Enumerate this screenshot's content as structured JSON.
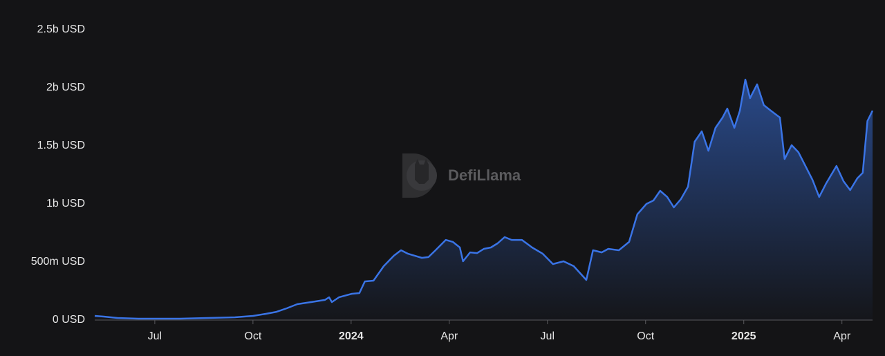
{
  "chart_data": {
    "type": "area",
    "color": "#3a74e6",
    "watermark": "DefiLlama",
    "xlim": [
      2023.347,
      2025.328
    ],
    "xticks": [
      {
        "value": 2023.5,
        "label": "Jul"
      },
      {
        "value": 2023.75,
        "label": "Oct"
      },
      {
        "value": 2024.0,
        "label": "2024"
      },
      {
        "value": 2024.25,
        "label": "Apr"
      },
      {
        "value": 2024.5,
        "label": "Jul"
      },
      {
        "value": 2024.75,
        "label": "Oct"
      },
      {
        "value": 2025.0,
        "label": "2025"
      },
      {
        "value": 2025.25,
        "label": "Apr"
      }
    ],
    "ylim": [
      0,
      2500000000
    ],
    "yticks": [
      {
        "value": 0,
        "label": "0 USD"
      },
      {
        "value": 500000000,
        "label": "500m USD"
      },
      {
        "value": 1000000000,
        "label": "1b USD"
      },
      {
        "value": 1500000000,
        "label": "1.5b USD"
      },
      {
        "value": 2000000000,
        "label": "2b USD"
      },
      {
        "value": 2500000000,
        "label": "2.5b USD"
      }
    ],
    "x": [
      2023.347,
      2023.37,
      2023.405,
      2023.458,
      2023.5,
      2023.564,
      2023.634,
      2023.704,
      2023.75,
      2023.784,
      2023.81,
      2023.836,
      2023.863,
      2023.898,
      2023.933,
      2023.944,
      2023.951,
      2023.969,
      2024.002,
      2024.021,
      2024.035,
      2024.057,
      2024.083,
      2024.109,
      2024.127,
      2024.145,
      2024.162,
      2024.18,
      2024.197,
      2024.215,
      2024.241,
      2024.259,
      2024.277,
      2024.285,
      2024.303,
      2024.321,
      2024.338,
      2024.356,
      2024.373,
      2024.391,
      2024.409,
      2024.435,
      2024.461,
      2024.488,
      2024.514,
      2024.541,
      2024.567,
      2024.599,
      2024.616,
      2024.638,
      2024.655,
      2024.682,
      2024.708,
      2024.729,
      2024.752,
      2024.77,
      2024.787,
      2024.805,
      2024.822,
      2024.84,
      2024.858,
      2024.875,
      2024.893,
      2024.91,
      2024.928,
      2024.946,
      2024.958,
      2024.976,
      2024.99,
      2025.004,
      2025.016,
      2025.034,
      2025.051,
      2025.069,
      2025.092,
      2025.104,
      2025.122,
      2025.139,
      2025.157,
      2025.175,
      2025.192,
      2025.21,
      2025.236,
      2025.254,
      2025.271,
      2025.289,
      2025.303,
      2025.315,
      2025.328
    ],
    "values": [
      36000000,
      30000000,
      18000000,
      12000000,
      12000000,
      12000000,
      18000000,
      24000000,
      36000000,
      54000000,
      71000000,
      101000000,
      137000000,
      155000000,
      173000000,
      196000000,
      155000000,
      196000000,
      226000000,
      232000000,
      333000000,
      339000000,
      464000000,
      554000000,
      601000000,
      571000000,
      554000000,
      536000000,
      542000000,
      601000000,
      690000000,
      673000000,
      625000000,
      506000000,
      583000000,
      577000000,
      613000000,
      625000000,
      661000000,
      714000000,
      690000000,
      690000000,
      625000000,
      571000000,
      482000000,
      506000000,
      464000000,
      345000000,
      601000000,
      583000000,
      613000000,
      601000000,
      673000000,
      911000000,
      1000000000,
      1030000000,
      1113000000,
      1060000000,
      970000000,
      1042000000,
      1149000000,
      1536000000,
      1625000000,
      1458000000,
      1655000000,
      1744000000,
      1821000000,
      1655000000,
      1803000000,
      2071000000,
      1911000000,
      2030000000,
      1851000000,
      1803000000,
      1744000000,
      1387000000,
      1506000000,
      1446000000,
      1327000000,
      1208000000,
      1060000000,
      1178000000,
      1327000000,
      1196000000,
      1119000000,
      1220000000,
      1268000000,
      1714000000,
      1803000000
    ]
  }
}
